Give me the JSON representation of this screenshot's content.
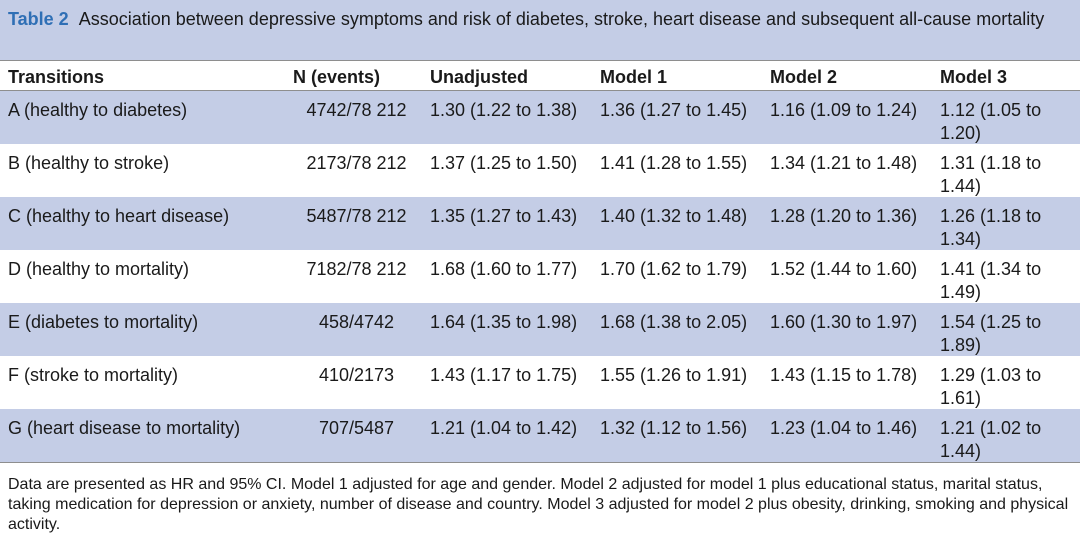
{
  "caption": {
    "label": "Table 2",
    "text": "Association between depressive symptoms and risk of diabetes, stroke, heart disease and subsequent all-cause mortality"
  },
  "columns": [
    "Transitions",
    "N (events)",
    "Unadjusted",
    "Model 1",
    "Model 2",
    "Model 3"
  ],
  "rows": [
    {
      "transition": "A (healthy to diabetes)",
      "n": "4742/78 212",
      "unadj": "1.30 (1.22 to 1.38)",
      "m1": "1.36 (1.27 to 1.45)",
      "m2": "1.16 (1.09 to 1.24)",
      "m3": "1.12 (1.05 to 1.20)"
    },
    {
      "transition": "B (healthy to stroke)",
      "n": "2173/78 212",
      "unadj": "1.37 (1.25 to 1.50)",
      "m1": "1.41 (1.28 to 1.55)",
      "m2": "1.34 (1.21 to 1.48)",
      "m3": "1.31 (1.18 to 1.44)"
    },
    {
      "transition": "C (healthy to heart disease)",
      "n": "5487/78 212",
      "unadj": "1.35 (1.27 to 1.43)",
      "m1": "1.40 (1.32 to 1.48)",
      "m2": "1.28 (1.20 to 1.36)",
      "m3": "1.26 (1.18 to 1.34)"
    },
    {
      "transition": "D (healthy to mortality)",
      "n": "7182/78 212",
      "unadj": "1.68 (1.60 to 1.77)",
      "m1": "1.70 (1.62 to 1.79)",
      "m2": "1.52 (1.44 to 1.60)",
      "m3": "1.41 (1.34 to 1.49)"
    },
    {
      "transition": "E (diabetes to mortality)",
      "n": "458/4742",
      "unadj": "1.64 (1.35 to 1.98)",
      "m1": "1.68 (1.38 to 2.05)",
      "m2": "1.60 (1.30 to 1.97)",
      "m3": "1.54 (1.25 to 1.89)"
    },
    {
      "transition": "F (stroke to mortality)",
      "n": "410/2173",
      "unadj": "1.43 (1.17 to 1.75)",
      "m1": "1.55 (1.26 to 1.91)",
      "m2": "1.43 (1.15 to 1.78)",
      "m3": "1.29 (1.03 to 1.61)"
    },
    {
      "transition": "G (heart disease to mortality)",
      "n": "707/5487",
      "unadj": "1.21 (1.04 to 1.42)",
      "m1": "1.32 (1.12 to 1.56)",
      "m2": "1.23 (1.04 to 1.46)",
      "m3": "1.21 (1.02 to 1.44)"
    }
  ],
  "footnote": "Data are presented as HR and 95% CI. Model 1 adjusted for age and gender. Model 2 adjusted for model 1 plus educational status, marital status, taking medication for depression or anxiety, number of disease and country. Model 3 adjusted for model 2 plus obesity, drinking, smoking and physical activity.",
  "colors": {
    "band": "#c4cde6",
    "label": "#2f6fb5"
  }
}
